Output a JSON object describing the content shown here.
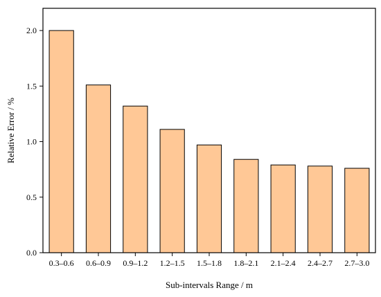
{
  "chart_data": {
    "type": "bar",
    "title": "",
    "xlabel": "Sub-intervals Range / m",
    "ylabel": "Relative Error / %",
    "categories": [
      "0.3–0.6",
      "0.6–0.9",
      "0.9–1.2",
      "1.2–1.5",
      "1.5–1.8",
      "1.8–2.1",
      "2.1–2.4",
      "2.4–2.7",
      "2.7–3.0"
    ],
    "values": [
      2.0,
      1.51,
      1.32,
      1.11,
      0.97,
      0.84,
      0.79,
      0.78,
      0.76
    ],
    "ylim": [
      0,
      2.2
    ],
    "yticks": [
      "0.0",
      "0.5",
      "1.0",
      "1.5",
      "2.0"
    ],
    "grid": false,
    "legend": "none",
    "bar_color": "#FFC896",
    "bar_edge_color": "#000000"
  }
}
